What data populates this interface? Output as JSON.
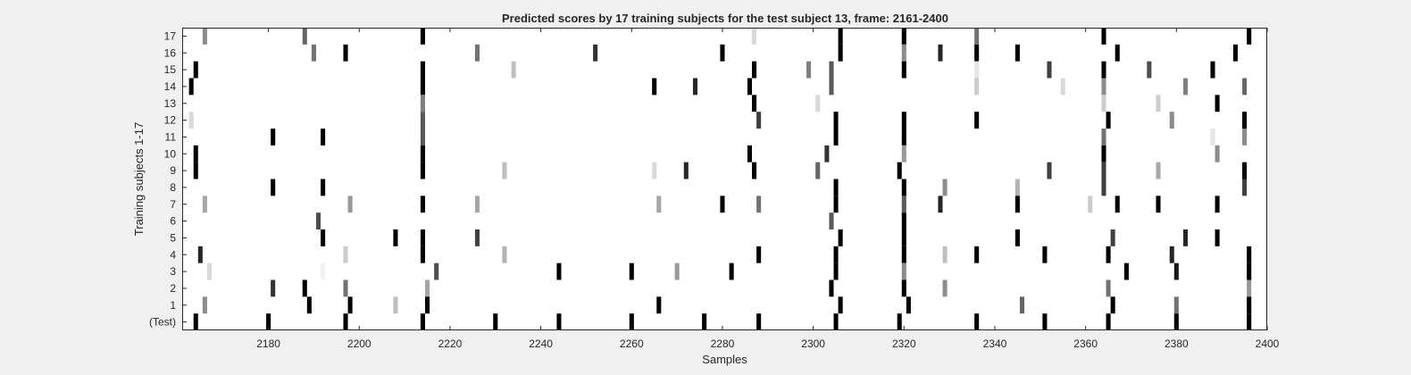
{
  "chart_data": {
    "type": "heatmap",
    "title": "Predicted scores by 17 training subjects for the test subject 13, frame: 2161-2400",
    "xlabel": "Samples",
    "ylabel": "Training subjects 1-17",
    "xlim": [
      2161,
      2400
    ],
    "xticks": [
      2180,
      2200,
      2220,
      2240,
      2260,
      2280,
      2300,
      2320,
      2340,
      2360,
      2380,
      2400
    ],
    "rows": [
      "17",
      "16",
      "15",
      "14",
      "13",
      "12",
      "11",
      "10",
      "9",
      "8",
      "7",
      "6",
      "5",
      "4",
      "3",
      "2",
      "1",
      "(Test)"
    ],
    "colormap": "gray (0 = white, 1 = black)",
    "grid": false,
    "cells": [
      {
        "row": "17",
        "points": [
          [
            2166,
            0.45
          ],
          [
            2188,
            0.6
          ],
          [
            2214,
            1
          ],
          [
            2287,
            0.15
          ],
          [
            2306,
            1
          ],
          [
            2320,
            1
          ],
          [
            2336,
            0.55
          ],
          [
            2364,
            1
          ],
          [
            2396,
            1
          ]
        ]
      },
      {
        "row": "16",
        "points": [
          [
            2190,
            0.55
          ],
          [
            2197,
            1
          ],
          [
            2226,
            0.55
          ],
          [
            2252,
            0.8
          ],
          [
            2280,
            1
          ],
          [
            2306,
            1
          ],
          [
            2320,
            0.45
          ],
          [
            2328,
            0.85
          ],
          [
            2336,
            1
          ],
          [
            2345,
            1
          ],
          [
            2367,
            1
          ],
          [
            2393,
            1
          ]
        ]
      },
      {
        "row": "15",
        "points": [
          [
            2164,
            1
          ],
          [
            2214,
            1
          ],
          [
            2234,
            0.25
          ],
          [
            2287,
            1
          ],
          [
            2299,
            0.5
          ],
          [
            2304,
            0.65
          ],
          [
            2320,
            1
          ],
          [
            2336,
            0.1
          ],
          [
            2352,
            0.75
          ],
          [
            2364,
            1
          ],
          [
            2374,
            0.7
          ],
          [
            2388,
            1
          ]
        ]
      },
      {
        "row": "14",
        "points": [
          [
            2163,
            1
          ],
          [
            2214,
            1
          ],
          [
            2265,
            1
          ],
          [
            2274,
            0.85
          ],
          [
            2286,
            1
          ],
          [
            2304,
            0.65
          ],
          [
            2336,
            0.2
          ],
          [
            2355,
            0.15
          ],
          [
            2364,
            0.45
          ],
          [
            2382,
            0.5
          ],
          [
            2395,
            0.6
          ]
        ]
      },
      {
        "row": "13",
        "points": [
          [
            2214,
            0.5
          ],
          [
            2287,
            1
          ],
          [
            2301,
            0.15
          ],
          [
            2364,
            0.2
          ],
          [
            2376,
            0.2
          ],
          [
            2389,
            1
          ]
        ]
      },
      {
        "row": "12",
        "points": [
          [
            2163,
            0.15
          ],
          [
            2214,
            0.65
          ],
          [
            2288,
            0.75
          ],
          [
            2305,
            1
          ],
          [
            2320,
            1
          ],
          [
            2336,
            1
          ],
          [
            2365,
            1
          ],
          [
            2379,
            0.45
          ],
          [
            2395,
            1
          ]
        ]
      },
      {
        "row": "11",
        "points": [
          [
            2181,
            1
          ],
          [
            2192,
            1
          ],
          [
            2214,
            0.65
          ],
          [
            2305,
            1
          ],
          [
            2320,
            1
          ],
          [
            2364,
            0.55
          ],
          [
            2388,
            0.1
          ],
          [
            2395,
            0.45
          ]
        ]
      },
      {
        "row": "10",
        "points": [
          [
            2164,
            1
          ],
          [
            2214,
            1
          ],
          [
            2286,
            1
          ],
          [
            2303,
            0.8
          ],
          [
            2320,
            0.4
          ],
          [
            2364,
            1
          ],
          [
            2389,
            0.45
          ]
        ]
      },
      {
        "row": "9",
        "points": [
          [
            2164,
            1
          ],
          [
            2214,
            1
          ],
          [
            2232,
            0.25
          ],
          [
            2265,
            0.15
          ],
          [
            2272,
            0.85
          ],
          [
            2287,
            1
          ],
          [
            2301,
            0.6
          ],
          [
            2319,
            1
          ],
          [
            2352,
            0.75
          ],
          [
            2364,
            0.75
          ],
          [
            2376,
            0.35
          ],
          [
            2395,
            1
          ]
        ]
      },
      {
        "row": "8",
        "points": [
          [
            2181,
            1
          ],
          [
            2192,
            1
          ],
          [
            2305,
            1
          ],
          [
            2320,
            1
          ],
          [
            2329,
            0.45
          ],
          [
            2345,
            0.3
          ],
          [
            2364,
            0.75
          ],
          [
            2395,
            0.75
          ]
        ]
      },
      {
        "row": "7",
        "points": [
          [
            2166,
            0.35
          ],
          [
            2198,
            0.4
          ],
          [
            2214,
            1
          ],
          [
            2226,
            0.35
          ],
          [
            2266,
            0.35
          ],
          [
            2280,
            1
          ],
          [
            2288,
            0.55
          ],
          [
            2305,
            1
          ],
          [
            2320,
            0.65
          ],
          [
            2328,
            0.85
          ],
          [
            2345,
            1
          ],
          [
            2361,
            0.2
          ],
          [
            2367,
            1
          ],
          [
            2376,
            1
          ],
          [
            2389,
            1
          ]
        ]
      },
      {
        "row": "6",
        "points": [
          [
            2191,
            0.7
          ],
          [
            2304,
            0.65
          ],
          [
            2320,
            1
          ]
        ]
      },
      {
        "row": "5",
        "points": [
          [
            2192,
            1
          ],
          [
            2208,
            1
          ],
          [
            2214,
            1
          ],
          [
            2226,
            0.75
          ],
          [
            2306,
            1
          ],
          [
            2320,
            1
          ],
          [
            2345,
            1
          ],
          [
            2366,
            0.75
          ],
          [
            2382,
            0.85
          ],
          [
            2389,
            1
          ]
        ]
      },
      {
        "row": "4",
        "points": [
          [
            2165,
            0.85
          ],
          [
            2197,
            0.2
          ],
          [
            2214,
            1
          ],
          [
            2232,
            0.3
          ],
          [
            2288,
            1
          ],
          [
            2305,
            1
          ],
          [
            2320,
            1
          ],
          [
            2329,
            0.25
          ],
          [
            2336,
            1
          ],
          [
            2351,
            1
          ],
          [
            2365,
            1
          ],
          [
            2379,
            0.85
          ],
          [
            2396,
            1
          ]
        ]
      },
      {
        "row": "3",
        "points": [
          [
            2167,
            0.15
          ],
          [
            2192,
            0.05
          ],
          [
            2217,
            0.7
          ],
          [
            2244,
            1
          ],
          [
            2260,
            1
          ],
          [
            2270,
            0.4
          ],
          [
            2282,
            1
          ],
          [
            2305,
            1
          ],
          [
            2320,
            0.45
          ],
          [
            2369,
            1
          ],
          [
            2380,
            0.9
          ],
          [
            2396,
            1
          ]
        ]
      },
      {
        "row": "2",
        "points": [
          [
            2181,
            0.8
          ],
          [
            2188,
            1
          ],
          [
            2197,
            0.55
          ],
          [
            2215,
            0.35
          ],
          [
            2304,
            1
          ],
          [
            2320,
            1
          ],
          [
            2329,
            0.45
          ],
          [
            2365,
            0.55
          ],
          [
            2396,
            0.4
          ]
        ]
      },
      {
        "row": "1",
        "points": [
          [
            2166,
            0.45
          ],
          [
            2189,
            1
          ],
          [
            2198,
            1
          ],
          [
            2208,
            0.25
          ],
          [
            2215,
            1
          ],
          [
            2266,
            1
          ],
          [
            2306,
            1
          ],
          [
            2321,
            1
          ],
          [
            2346,
            0.6
          ],
          [
            2366,
            1
          ],
          [
            2380,
            0.55
          ],
          [
            2396,
            1
          ]
        ]
      },
      {
        "row": "(Test)",
        "points": [
          [
            2164,
            1
          ],
          [
            2180,
            1
          ],
          [
            2197,
            1
          ],
          [
            2214,
            1
          ],
          [
            2230,
            1
          ],
          [
            2244,
            1
          ],
          [
            2260,
            1
          ],
          [
            2276,
            1
          ],
          [
            2288,
            1
          ],
          [
            2305,
            1
          ],
          [
            2319,
            1
          ],
          [
            2336,
            1
          ],
          [
            2351,
            1
          ],
          [
            2365,
            1
          ],
          [
            2380,
            1
          ],
          [
            2396,
            1
          ]
        ]
      }
    ]
  }
}
